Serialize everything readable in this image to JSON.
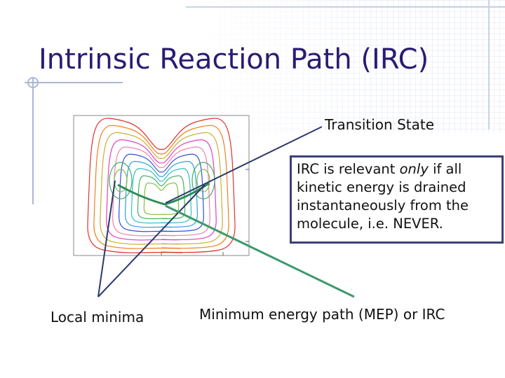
{
  "title": "Intrinsic Reaction Path (IRC)",
  "labels": {
    "transition_state": "Transition State",
    "local_minima": "Local minima",
    "mep": "Minimum energy path (MEP) or IRC"
  },
  "note": {
    "before": "IRC is relevant ",
    "emphasis": "only",
    "after": " if all kinetic energy is drained instantaneously from the molecule, i.e. NEVER."
  }
}
